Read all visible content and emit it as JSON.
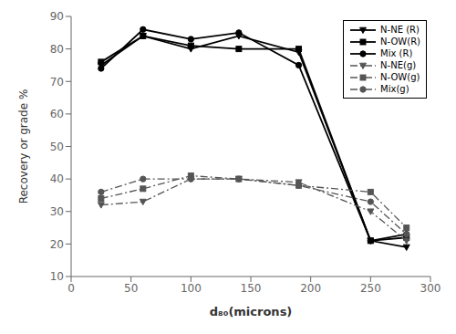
{
  "chart_data": {
    "type": "line",
    "xlabel": "d₈₀(microns)",
    "ylabel": "Recovery or grade %",
    "x": [
      25,
      60,
      100,
      140,
      190,
      250,
      280
    ],
    "xlim": [
      0,
      300
    ],
    "xticks": [
      0,
      50,
      100,
      150,
      200,
      250,
      300
    ],
    "ylim": [
      10,
      90
    ],
    "yticks": [
      10,
      20,
      30,
      40,
      50,
      60,
      70,
      80,
      90
    ],
    "grid": false,
    "legend": "upper right",
    "series": [
      {
        "name": "N-NE (R)",
        "color": "#000000",
        "marker": "triangle_down",
        "line_style": "solid",
        "values": [
          75,
          84,
          80,
          84,
          79,
          21,
          19
        ]
      },
      {
        "name": "N-OW(R)",
        "color": "#000000",
        "marker": "square",
        "line_style": "solid",
        "values": [
          76,
          84,
          81,
          80,
          80,
          21,
          22
        ]
      },
      {
        "name": "Mix (R)",
        "color": "#000000",
        "marker": "circle",
        "line_style": "solid",
        "values": [
          74,
          86,
          83,
          85,
          75,
          21,
          23
        ]
      },
      {
        "name": "N-NE(g)",
        "color": "#555555",
        "marker": "triangle_down",
        "line_style": "dashdot",
        "values": [
          32,
          33,
          40,
          40,
          39,
          30,
          21
        ]
      },
      {
        "name": "N-OW(g)",
        "color": "#555555",
        "marker": "square",
        "line_style": "dashdot",
        "values": [
          34,
          37,
          41,
          40,
          38,
          36,
          25
        ]
      },
      {
        "name": "Mix(g)",
        "color": "#555555",
        "marker": "circle",
        "line_style": "dashdot",
        "values": [
          36,
          40,
          40,
          40,
          38,
          33,
          23
        ]
      }
    ]
  }
}
